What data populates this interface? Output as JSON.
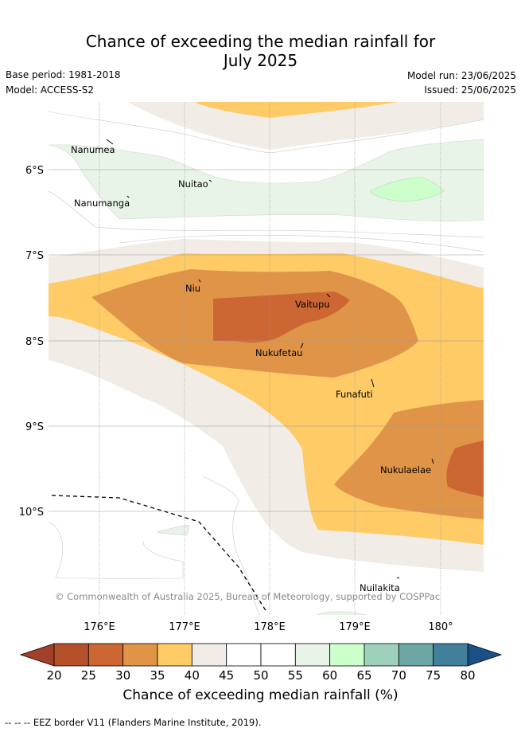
{
  "title_line1": "Chance of exceeding the median rainfall for",
  "title_line2": "July 2025",
  "base_period": "Base period: 1981-2018",
  "model": "Model: ACCESS-S2",
  "model_run": "Model run: 23/06/2025",
  "issued": "Issued: 25/06/2025",
  "copyright": "© Commonwealth of Australia 2025, Bureau of Meteorology, supported by COSPPac",
  "lat_labels": [
    "6°S",
    "7°S",
    "8°S",
    "9°S",
    "10°S"
  ],
  "lon_labels": [
    "176°E",
    "177°E",
    "178°E",
    "179°E",
    "180°"
  ],
  "places": [
    "Nanumea",
    "Nuitao",
    "Nanumanga",
    "Niu",
    "Vaitupu",
    "Nukufetau",
    "Funafuti",
    "Nukulaelae",
    "Nuilakita"
  ],
  "colorbar": {
    "ticks": [
      "20",
      "25",
      "30",
      "35",
      "40",
      "45",
      "50",
      "55",
      "60",
      "65",
      "70",
      "75",
      "80"
    ],
    "colors": [
      "#b4502a",
      "#cc6633",
      "#e09448",
      "#fecb66",
      "#f1ece6",
      "#ffffff",
      "#ffffff",
      "#e9f4e8",
      "#ccffcc",
      "#9ed1bb",
      "#6ea6a6",
      "#417f9a"
    ],
    "under_color": "#a2402a",
    "over_color": "#1a4f87",
    "label": "Chance of exceeding median rainfall (%)"
  },
  "eez_note": "-- -- -- EEZ border V11 (Flanders Marine Institute, 2019)."
}
